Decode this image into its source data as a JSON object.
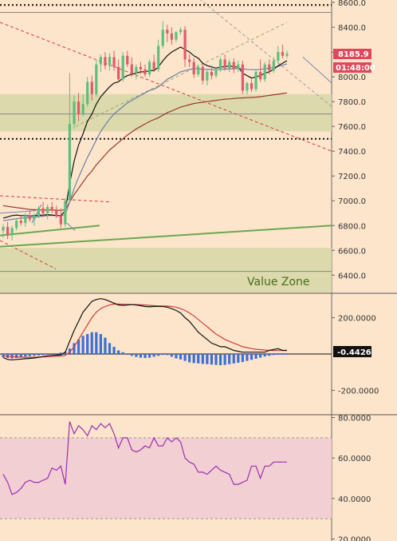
{
  "chart_data": [
    {
      "type": "candlestick",
      "panel": "price",
      "y_ticks": [
        "8600.0",
        "8400.0",
        "8200.0",
        "8000.0",
        "7800.0",
        "7600.0",
        "7400.0",
        "7200.0",
        "7000.0",
        "6800.0",
        "6600.0",
        "6400.0"
      ],
      "ylim": [
        6260,
        8620
      ],
      "last_price_label": "8185.9",
      "countdown_label": "01:48:00",
      "zone_label": "Value Zone",
      "colors": {
        "up": "#5bbf7d",
        "down": "#e05a6a",
        "bg": "#fde5cb",
        "zone": "#d8d8a8",
        "ema_fast": "#111111",
        "ema_mid": "#6b7fa8",
        "ema_slow": "#9c3a2a",
        "trend_green": "#6aa84f",
        "trend_red": "#d23c3c"
      },
      "candles": [
        {
          "o": 6760,
          "h": 6810,
          "l": 6700,
          "c": 6790
        },
        {
          "o": 6790,
          "h": 6830,
          "l": 6690,
          "c": 6720
        },
        {
          "o": 6720,
          "h": 6800,
          "l": 6680,
          "c": 6780
        },
        {
          "o": 6780,
          "h": 6860,
          "l": 6760,
          "c": 6840
        },
        {
          "o": 6840,
          "h": 6880,
          "l": 6800,
          "c": 6820
        },
        {
          "o": 6820,
          "h": 6900,
          "l": 6790,
          "c": 6880
        },
        {
          "o": 6880,
          "h": 6920,
          "l": 6830,
          "c": 6850
        },
        {
          "o": 6850,
          "h": 6900,
          "l": 6800,
          "c": 6880
        },
        {
          "o": 6880,
          "h": 6960,
          "l": 6860,
          "c": 6940
        },
        {
          "o": 6940,
          "h": 6990,
          "l": 6870,
          "c": 6900
        },
        {
          "o": 6900,
          "h": 6970,
          "l": 6850,
          "c": 6950
        },
        {
          "o": 6950,
          "h": 6990,
          "l": 6900,
          "c": 6920
        },
        {
          "o": 6920,
          "h": 6960,
          "l": 6860,
          "c": 6880
        },
        {
          "o": 6880,
          "h": 6940,
          "l": 6780,
          "c": 6810
        },
        {
          "o": 6810,
          "h": 7020,
          "l": 6790,
          "c": 7000
        },
        {
          "o": 7000,
          "h": 8030,
          "l": 6990,
          "c": 7620
        },
        {
          "o": 7620,
          "h": 7850,
          "l": 7580,
          "c": 7800
        },
        {
          "o": 7800,
          "h": 7870,
          "l": 7640,
          "c": 7700
        },
        {
          "o": 7700,
          "h": 7860,
          "l": 7680,
          "c": 7780
        },
        {
          "o": 7780,
          "h": 8000,
          "l": 7760,
          "c": 7960
        },
        {
          "o": 7960,
          "h": 8010,
          "l": 7810,
          "c": 7860
        },
        {
          "o": 7860,
          "h": 8140,
          "l": 7840,
          "c": 8100
        },
        {
          "o": 8100,
          "h": 8180,
          "l": 8040,
          "c": 8160
        },
        {
          "o": 8160,
          "h": 8200,
          "l": 8060,
          "c": 8090
        },
        {
          "o": 8090,
          "h": 8190,
          "l": 8050,
          "c": 8160
        },
        {
          "o": 8160,
          "h": 8210,
          "l": 8050,
          "c": 8080
        },
        {
          "o": 8080,
          "h": 8140,
          "l": 7960,
          "c": 7980
        },
        {
          "o": 7980,
          "h": 8200,
          "l": 7960,
          "c": 8170
        },
        {
          "o": 8170,
          "h": 8210,
          "l": 8080,
          "c": 8100
        },
        {
          "o": 8100,
          "h": 8160,
          "l": 8000,
          "c": 8030
        },
        {
          "o": 8030,
          "h": 8100,
          "l": 7980,
          "c": 8080
        },
        {
          "o": 8080,
          "h": 8120,
          "l": 8020,
          "c": 8060
        },
        {
          "o": 8060,
          "h": 8100,
          "l": 8000,
          "c": 8020
        },
        {
          "o": 8020,
          "h": 8140,
          "l": 8000,
          "c": 8120
        },
        {
          "o": 8120,
          "h": 8180,
          "l": 8040,
          "c": 8060
        },
        {
          "o": 8060,
          "h": 8300,
          "l": 8040,
          "c": 8250
        },
        {
          "o": 8250,
          "h": 8450,
          "l": 8230,
          "c": 8380
        },
        {
          "o": 8380,
          "h": 8420,
          "l": 8280,
          "c": 8350
        },
        {
          "o": 8350,
          "h": 8400,
          "l": 8260,
          "c": 8300
        },
        {
          "o": 8300,
          "h": 8370,
          "l": 8280,
          "c": 8360
        },
        {
          "o": 8360,
          "h": 8400,
          "l": 8340,
          "c": 8380
        },
        {
          "o": 8380,
          "h": 8410,
          "l": 8080,
          "c": 8140
        },
        {
          "o": 8140,
          "h": 8180,
          "l": 8080,
          "c": 8120
        },
        {
          "o": 8120,
          "h": 8150,
          "l": 7990,
          "c": 8020
        },
        {
          "o": 8020,
          "h": 8100,
          "l": 8000,
          "c": 8080
        },
        {
          "o": 8080,
          "h": 8100,
          "l": 7940,
          "c": 7970
        },
        {
          "o": 7970,
          "h": 8060,
          "l": 7930,
          "c": 8040
        },
        {
          "o": 8040,
          "h": 8090,
          "l": 7980,
          "c": 8010
        },
        {
          "o": 8010,
          "h": 8080,
          "l": 7990,
          "c": 8060
        },
        {
          "o": 8060,
          "h": 8160,
          "l": 8040,
          "c": 8140
        },
        {
          "o": 8140,
          "h": 8180,
          "l": 8050,
          "c": 8070
        },
        {
          "o": 8070,
          "h": 8140,
          "l": 8040,
          "c": 8120
        },
        {
          "o": 8120,
          "h": 8150,
          "l": 8030,
          "c": 8060
        },
        {
          "o": 8060,
          "h": 8130,
          "l": 8040,
          "c": 8100
        },
        {
          "o": 8100,
          "h": 8130,
          "l": 7860,
          "c": 7890
        },
        {
          "o": 7890,
          "h": 7960,
          "l": 7860,
          "c": 7950
        },
        {
          "o": 7950,
          "h": 7980,
          "l": 7880,
          "c": 7900
        },
        {
          "o": 7900,
          "h": 8060,
          "l": 7880,
          "c": 8040
        },
        {
          "o": 8040,
          "h": 8140,
          "l": 7960,
          "c": 7980
        },
        {
          "o": 7980,
          "h": 8120,
          "l": 7960,
          "c": 8100
        },
        {
          "o": 8100,
          "h": 8140,
          "l": 8020,
          "c": 8050
        },
        {
          "o": 8050,
          "h": 8160,
          "l": 8030,
          "c": 8130
        },
        {
          "o": 8130,
          "h": 8250,
          "l": 8110,
          "c": 8200
        },
        {
          "o": 8200,
          "h": 8260,
          "l": 8150,
          "c": 8170
        },
        {
          "o": 8170,
          "h": 8210,
          "l": 8150,
          "c": 8186
        }
      ],
      "ema_fast": [
        6860,
        6870,
        6880,
        6885,
        6880,
        6880,
        6878,
        6880,
        6882,
        6885,
        6888,
        6885,
        6880,
        6880,
        6920,
        7140,
        7320,
        7450,
        7540,
        7640,
        7700,
        7780,
        7840,
        7880,
        7920,
        7950,
        7960,
        7990,
        8010,
        8020,
        8030,
        8040,
        8040,
        8050,
        8050,
        8080,
        8130,
        8170,
        8200,
        8220,
        8240,
        8220,
        8200,
        8170,
        8150,
        8110,
        8090,
        8080,
        8070,
        8080,
        8080,
        8090,
        8080,
        8080,
        8030,
        8010,
        7990,
        8000,
        8010,
        8030,
        8040,
        8060,
        8090,
        8110,
        8130
      ],
      "ema_mid": [
        6840,
        6845,
        6850,
        6855,
        6860,
        6862,
        6865,
        6868,
        6872,
        6876,
        6880,
        6882,
        6880,
        6878,
        6890,
        6990,
        7100,
        7190,
        7270,
        7350,
        7420,
        7490,
        7560,
        7610,
        7660,
        7700,
        7730,
        7760,
        7790,
        7810,
        7830,
        7850,
        7870,
        7890,
        7900,
        7920,
        7950,
        7980,
        8000,
        8020,
        8040,
        8050,
        8060,
        8065,
        8065,
        8060,
        8060,
        8060,
        8058,
        8060,
        8062,
        8065,
        8066,
        8068,
        8065,
        8060,
        8058,
        8058,
        8060,
        8065,
        8070,
        8075,
        8085,
        8095,
        8105
      ],
      "ema_slow": [
        6960,
        6955,
        6950,
        6945,
        6940,
        6935,
        6930,
        6928,
        6926,
        6925,
        6925,
        6925,
        6924,
        6922,
        6930,
        6990,
        7050,
        7100,
        7150,
        7200,
        7240,
        7290,
        7330,
        7370,
        7410,
        7440,
        7470,
        7500,
        7530,
        7555,
        7580,
        7600,
        7620,
        7640,
        7655,
        7670,
        7690,
        7710,
        7725,
        7740,
        7755,
        7765,
        7775,
        7785,
        7790,
        7795,
        7800,
        7805,
        7810,
        7815,
        7820,
        7822,
        7825,
        7828,
        7830,
        7832,
        7834,
        7836,
        7840,
        7845,
        7850,
        7855,
        7860,
        7865,
        7870
      ],
      "horizontal_levels": [
        8520,
        8580,
        7700,
        7500,
        6430
      ],
      "zones": [
        [
          7560,
          7860
        ],
        [
          6260,
          6620
        ]
      ]
    },
    {
      "type": "macd",
      "panel": "indicator",
      "y_ticks": [
        "200.0000",
        "-200.0000"
      ],
      "current_value_label": "-0.4426",
      "ylim": [
        -330,
        330
      ],
      "macd": [
        -20,
        -30,
        -32,
        -30,
        -28,
        -26,
        -24,
        -22,
        -18,
        -14,
        -10,
        -8,
        -6,
        -5,
        10,
        70,
        130,
        180,
        230,
        260,
        290,
        300,
        305,
        300,
        290,
        280,
        270,
        268,
        270,
        272,
        270,
        266,
        262,
        260,
        262,
        262,
        262,
        258,
        250,
        240,
        226,
        200,
        180,
        150,
        120,
        100,
        80,
        60,
        50,
        40,
        40,
        30,
        20,
        15,
        10,
        10,
        10,
        10,
        10,
        10,
        20,
        25,
        30,
        20,
        20
      ],
      "signal": [
        -10,
        -12,
        -14,
        -16,
        -17,
        -18,
        -18,
        -18,
        -17,
        -16,
        -15,
        -14,
        -12,
        -11,
        -8,
        10,
        40,
        80,
        120,
        160,
        200,
        230,
        250,
        262,
        270,
        275,
        275,
        274,
        273,
        272,
        272,
        271,
        270,
        268,
        266,
        265,
        264,
        264,
        262,
        258,
        250,
        240,
        226,
        210,
        190,
        170,
        150,
        130,
        110,
        95,
        80,
        70,
        60,
        50,
        40,
        35,
        30,
        26,
        24,
        22,
        20,
        20,
        20,
        20,
        20
      ],
      "histogram": [
        -18,
        -22,
        -24,
        -22,
        -18,
        -14,
        -12,
        -10,
        -8,
        -6,
        -4,
        -2,
        4,
        8,
        12,
        30,
        60,
        80,
        100,
        110,
        120,
        120,
        110,
        90,
        60,
        40,
        20,
        10,
        -2,
        -10,
        -16,
        -20,
        -22,
        -20,
        -15,
        -10,
        -5,
        -6,
        -15,
        -24,
        -30,
        -38,
        -46,
        -50,
        -52,
        -54,
        -56,
        -58,
        -60,
        -62,
        -60,
        -56,
        -52,
        -48,
        -44,
        -38,
        -32,
        -26,
        -20,
        -14,
        -10,
        -6,
        -4,
        -2,
        -1
      ]
    },
    {
      "type": "rsi",
      "panel": "oscillator",
      "y_ticks": [
        "80.0000",
        "60.0000",
        "40.0000",
        "20.0000"
      ],
      "ylim": [
        20,
        80
      ],
      "band": [
        30,
        70
      ],
      "values": [
        52,
        48,
        42,
        43,
        45,
        48,
        49,
        48,
        48,
        49,
        50,
        55,
        54,
        56,
        47,
        78,
        72,
        76,
        74,
        71,
        76,
        74,
        77,
        75,
        77,
        72,
        65,
        70,
        70,
        64,
        63,
        64,
        66,
        65,
        70,
        66,
        66,
        70,
        68,
        70,
        68,
        60,
        58,
        57,
        53,
        53,
        52,
        54,
        56,
        54,
        53,
        52,
        47,
        47,
        48,
        49,
        56,
        56,
        50,
        56,
        56,
        58,
        58,
        58,
        58
      ]
    }
  ]
}
